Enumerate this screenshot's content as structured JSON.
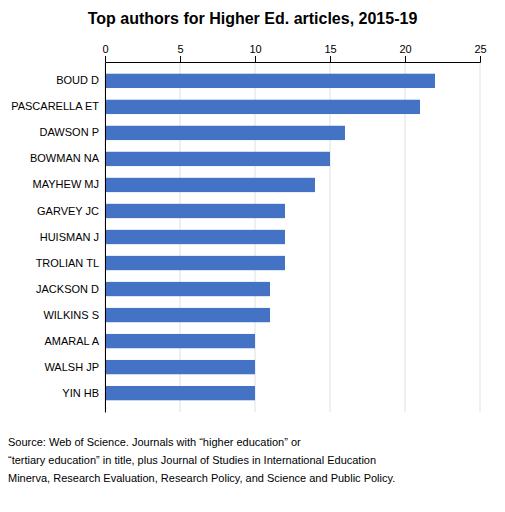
{
  "chart_data": {
    "type": "bar",
    "orientation": "horizontal",
    "title": "Top authors for Higher Ed. articles, 2015-19",
    "categories": [
      "BOUD D",
      "PASCARELLA ET",
      "DAWSON P",
      "BOWMAN NA",
      "MAYHEW MJ",
      "GARVEY JC",
      "HUISMAN J",
      "TROLIAN TL",
      "JACKSON D",
      "WILKINS S",
      "AMARAL A",
      "WALSH JP",
      "YIN HB"
    ],
    "values": [
      22,
      21,
      16,
      15,
      14,
      12,
      12,
      12,
      11,
      11,
      10,
      10,
      10
    ],
    "color": "#4472C4",
    "xlim": [
      0,
      25
    ],
    "xticks": [
      0,
      5,
      10,
      15,
      20,
      25
    ],
    "grid": true,
    "annotations": [
      "Source: Web of Science. Journals with “higher education” or",
      "“tertiary education” in title, plus Journal of Studies in International Education",
      "Minerva, Research Evaluation, Research Policy, and Science and Public Policy."
    ]
  }
}
